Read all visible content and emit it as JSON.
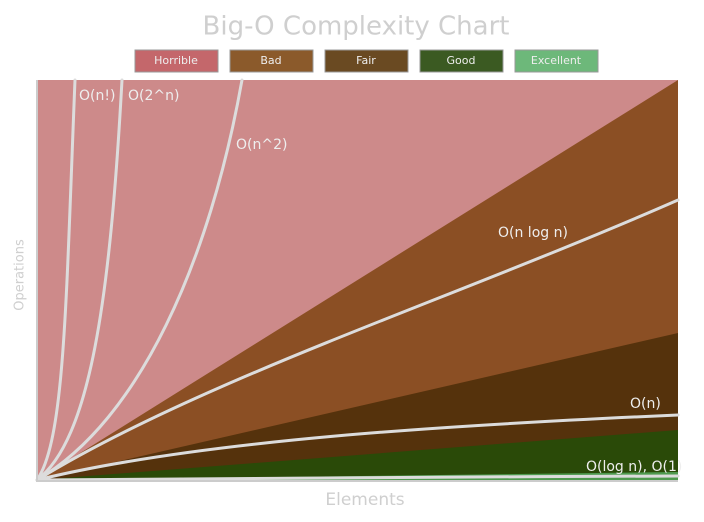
{
  "title": "Big-O Complexity Chart",
  "legend": [
    "Horrible",
    "Bad",
    "Fair",
    "Good",
    "Excellent"
  ],
  "y_label": "Operations",
  "x_label": "Elements",
  "curves": [
    "O(n!)",
    "O(2^n)",
    "O(n^2)",
    "O(n log n)",
    "O(n)",
    "O(log n), O(1)"
  ]
}
